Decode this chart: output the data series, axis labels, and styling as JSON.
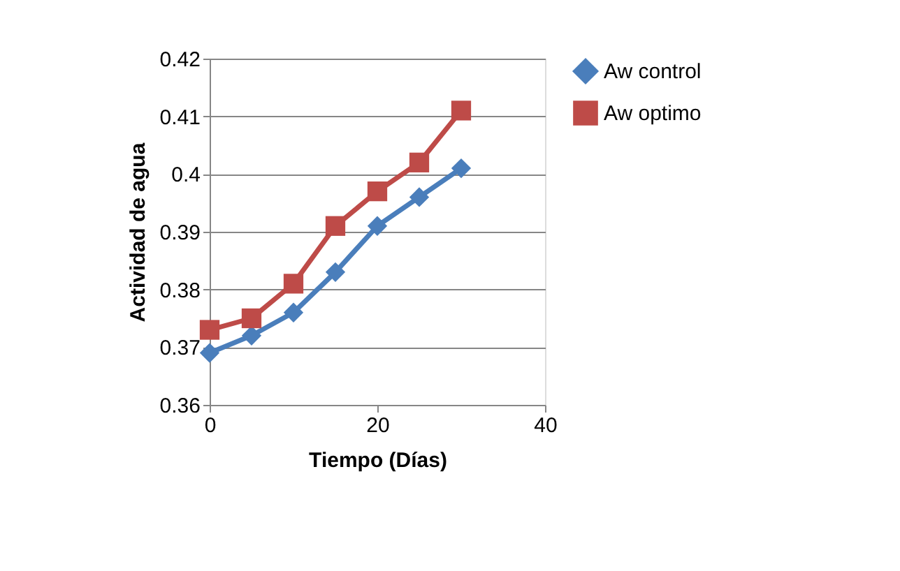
{
  "chart_data": {
    "type": "line",
    "xlabel": "Tiempo (Días)",
    "ylabel": "Actividad de agua",
    "x": [
      0,
      5,
      10,
      15,
      20,
      25,
      30
    ],
    "series": [
      {
        "name": "Aw control",
        "color": "#4a7ebb",
        "marker": "diamond",
        "values": [
          0.369,
          0.372,
          0.376,
          0.383,
          0.391,
          0.396,
          0.401
        ]
      },
      {
        "name": "Aw optimo",
        "color": "#be4b48",
        "marker": "square",
        "values": [
          0.373,
          0.375,
          0.381,
          0.391,
          0.397,
          0.402,
          0.411
        ]
      }
    ],
    "xlim": [
      0,
      40
    ],
    "xticks": [
      0,
      20,
      40
    ],
    "ylim": [
      0.36,
      0.42
    ],
    "yticks": [
      0.36,
      0.37,
      0.38,
      0.39,
      0.4,
      0.41,
      0.42
    ],
    "grid": "y",
    "legend": "right",
    "line_style": "solid"
  }
}
